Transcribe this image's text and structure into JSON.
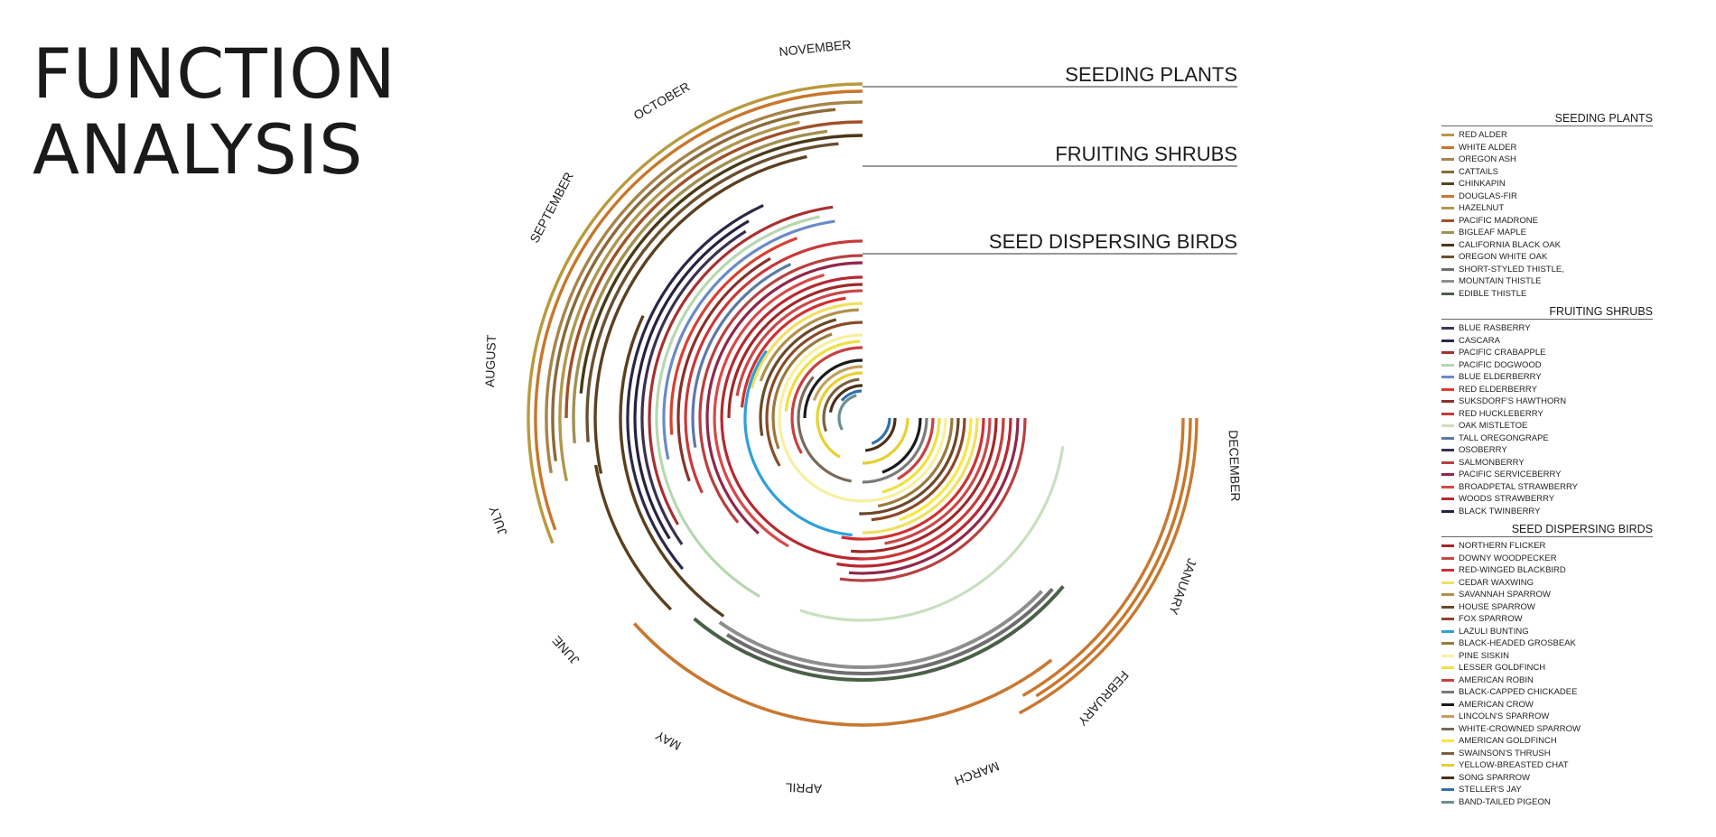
{
  "title": {
    "line1": "FUNCTION",
    "line2": "ANALYSIS"
  },
  "ring_titles": [
    "SEEDING PLANTS",
    "FRUITING SHRUBS",
    "SEED DISPERSING BIRDS"
  ],
  "months": [
    "NOVEMBER",
    "OCTOBER",
    "SEPTEMBER",
    "AUGUST",
    "JULY",
    "JUNE",
    "MAY",
    "APRIL",
    "MARCH",
    "FEBRUARY",
    "JANUARY",
    "DECEMBER"
  ],
  "legend": [
    {
      "header": "SEEDING PLANTS",
      "items": [
        {
          "label": "RED ALDER",
          "color": "#b89a3e"
        },
        {
          "label": "WHITE ALDER",
          "color": "#c8762a"
        },
        {
          "label": "OREGON ASH",
          "color": "#a88448"
        },
        {
          "label": "CATTAILS",
          "color": "#8a6a3a"
        },
        {
          "label": "CHINKAPIN",
          "color": "#5a4020"
        },
        {
          "label": "DOUGLAS-FIR",
          "color": "#c87830"
        },
        {
          "label": "HAZELNUT",
          "color": "#b0984e"
        },
        {
          "label": "PACIFIC MADRONE",
          "color": "#a05028"
        },
        {
          "label": "BIGLEAF MAPLE",
          "color": "#a09050"
        },
        {
          "label": "CALIFORNIA BLACK OAK",
          "color": "#4a3818"
        },
        {
          "label": "OREGON WHITE OAK",
          "color": "#6a5030"
        },
        {
          "label": "SHORT-STYLED THISTLE,",
          "color": "#6e6e6e"
        },
        {
          "label": "MOUNTAIN THISTLE",
          "color": "#8e8e8e"
        },
        {
          "label": "EDIBLE THISTLE",
          "color": "#4a6048"
        }
      ]
    },
    {
      "header": "FRUITING SHRUBS",
      "items": [
        {
          "label": "BLUE RASBERRY",
          "color": "#3a3a5a"
        },
        {
          "label": "CASCARA",
          "color": "#2a2848"
        },
        {
          "label": "PACIFIC CRABAPPLE",
          "color": "#a83030"
        },
        {
          "label": "PACIFIC DOGWOOD",
          "color": "#b8d8b0"
        },
        {
          "label": "BLUE ELDERBERRY",
          "color": "#6a8ac8"
        },
        {
          "label": "RED ELDERBERRY",
          "color": "#d84030"
        },
        {
          "label": "SUKSDORF'S HAWTHORN",
          "color": "#8a3028"
        },
        {
          "label": "RED HUCKLEBERRY",
          "color": "#c83838"
        },
        {
          "label": "OAK MISTLETOE",
          "color": "#c8e0c0"
        },
        {
          "label": "TALL OREGONGRAPE",
          "color": "#5a7aa8"
        },
        {
          "label": "OSOBERRY",
          "color": "#3a3050"
        },
        {
          "label": "SALMONBERRY",
          "color": "#b84040"
        },
        {
          "label": "PACIFIC SERVICEBERRY",
          "color": "#902848"
        },
        {
          "label": "BROADPETAL STRAWBERRY",
          "color": "#d84848"
        },
        {
          "label": "WOODS STRAWBERRY",
          "color": "#b82830"
        },
        {
          "label": "BLACK TWINBERRY",
          "color": "#282040"
        }
      ]
    },
    {
      "header": "SEED DISPERSING BIRDS",
      "items": [
        {
          "label": "NORTHERN FLICKER",
          "color": "#a02828"
        },
        {
          "label": "DOWNY WOODPECKER",
          "color": "#c84848"
        },
        {
          "label": "RED-WINGED BLACKBIRD",
          "color": "#d03030"
        },
        {
          "label": "CEDAR WAXWING",
          "color": "#f0e060"
        },
        {
          "label": "SAVANNAH SPARROW",
          "color": "#b0904a"
        },
        {
          "label": "HOUSE SPARROW",
          "color": "#6a4828"
        },
        {
          "label": "FOX SPARROW",
          "color": "#8a4a28"
        },
        {
          "label": "LAZULI BUNTING",
          "color": "#30a0d8"
        },
        {
          "label": "BLACK-HEADED GROSBEAK",
          "color": "#9a7a3a"
        },
        {
          "label": "PINE SISKIN",
          "color": "#f8f0a0"
        },
        {
          "label": "LESSER GOLDFINCH",
          "color": "#f0e040"
        },
        {
          "label": "AMERICAN ROBIN",
          "color": "#c84040"
        },
        {
          "label": "BLACK-CAPPED CHICKADEE",
          "color": "#7a7a7a"
        },
        {
          "label": "AMERICAN CROW",
          "color": "#1a1a1a"
        },
        {
          "label": "LINCOLN'S SPARROW",
          "color": "#c0a060"
        },
        {
          "label": "WHITE-CROWNED SPARROW",
          "color": "#7a6a5a"
        },
        {
          "label": "AMERICAN GOLDFINCH",
          "color": "#f8e840"
        },
        {
          "label": "SWAINSON'S THRUSH",
          "color": "#7a6040"
        },
        {
          "label": "YELLOW-BREASTED CHAT",
          "color": "#e8d030"
        },
        {
          "label": "SONG SPARROW",
          "color": "#4a3018"
        },
        {
          "label": "STELLER'S JAY",
          "color": "#3070b0"
        },
        {
          "label": "BAND-TAILED PIGEON",
          "color": "#6a9090"
        }
      ]
    }
  ]
}
